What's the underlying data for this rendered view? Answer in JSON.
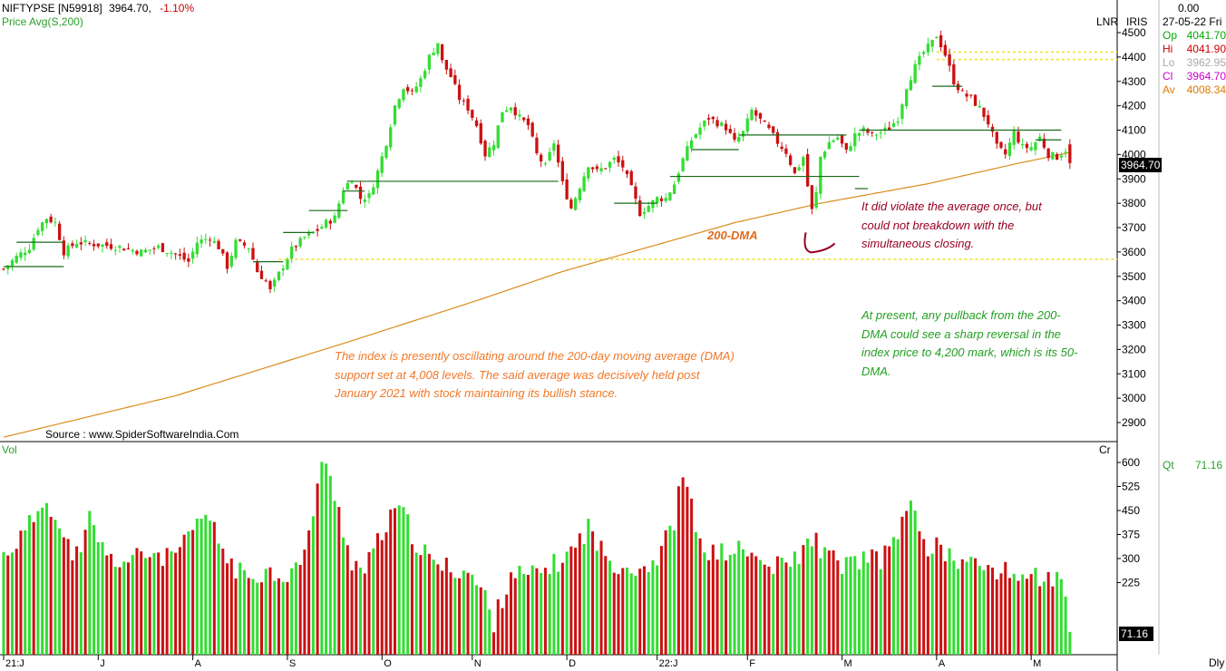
{
  "header": {
    "symbol": "NIFTYPSE [N59918]",
    "price": "3964.70,",
    "change": "-1.10%",
    "indicator_line": "Price  Avg(S,200)"
  },
  "right_panel": {
    "scale_mode": "LNR",
    "source_code": "IRIS",
    "top_value": "0.00",
    "date": "27-05-22 Fri",
    "ohlc": [
      {
        "key": "Op",
        "value": "4041.70",
        "color": "#00aa00"
      },
      {
        "key": "Hi",
        "value": "4041.90",
        "color": "#cc0000"
      },
      {
        "key": "Lo",
        "value": "3962.95",
        "color": "#aaaaaa"
      },
      {
        "key": "Cl",
        "value": "3964.70",
        "color": "#cc00cc"
      },
      {
        "key": "Av",
        "value": "4008.34",
        "color": "#e07800"
      }
    ],
    "last_price_tag": "3964.70",
    "qty_label": "Qt",
    "qty_value": "71.16",
    "volume_units": "Cr",
    "last_volume_tag": "71.16",
    "period": "Dly"
  },
  "volume_panel": {
    "label": "Vol"
  },
  "source": "Source : www.SpiderSoftwareIndia.Com",
  "annotations": {
    "dma_label": "200-DMA",
    "violation_note": " It did violate the average once, but could not breakdown with the simultaneous closing.",
    "pullback_note": "At present, any pullback from the 200-DMA could see a sharp reversal in the index price to 4,200 mark, which is its 50-DMA.",
    "oscillation_note": "The index is presently oscillating around the 200-day moving average (DMA) support set at 4,008 levels. The said average was decisively held post January 2021 with stock maintaining its bullish stance."
  },
  "colors": {
    "up": "#33dd33",
    "down": "#cc1111",
    "dma": "#d98c1a",
    "support_dotted": "#f0e020",
    "note_orange": "#f07828",
    "note_green": "#22a022",
    "note_maroon": "#990022"
  },
  "chart_data": {
    "type": "candlestick",
    "series_names": [
      "Price",
      "Avg(S,200)"
    ],
    "price_axis": {
      "min": 2800,
      "max": 4550,
      "ticks": [
        2900,
        3000,
        3100,
        3200,
        3300,
        3400,
        3500,
        3600,
        3700,
        3800,
        3900,
        4000,
        4100,
        4200,
        4300,
        4400,
        4500
      ]
    },
    "volume_axis": {
      "min": 0,
      "max": 620,
      "units": "Cr",
      "ticks": [
        225,
        300,
        375,
        450,
        525,
        600
      ]
    },
    "x_labels": [
      "21:J",
      "J",
      "A",
      "S",
      "O",
      "N",
      "D",
      "22:J",
      "F",
      "M",
      "A",
      "M"
    ],
    "x_label_start_period": [
      0,
      22,
      44,
      66,
      88,
      109,
      131,
      152,
      173,
      195,
      217,
      239
    ],
    "periods_count": 259,
    "last": {
      "open": 4041.7,
      "high": 4041.9,
      "low": 3962.95,
      "close": 3964.7,
      "avg200": 4008.34,
      "volume": 71.16
    },
    "price_path": [
      [
        0,
        3530
      ],
      [
        3,
        3580
      ],
      [
        6,
        3620
      ],
      [
        8,
        3700
      ],
      [
        10,
        3740
      ],
      [
        12,
        3720
      ],
      [
        14,
        3600
      ],
      [
        17,
        3640
      ],
      [
        22,
        3630
      ],
      [
        27,
        3620
      ],
      [
        32,
        3600
      ],
      [
        36,
        3620
      ],
      [
        40,
        3590
      ],
      [
        43,
        3560
      ],
      [
        45,
        3640
      ],
      [
        48,
        3660
      ],
      [
        50,
        3620
      ],
      [
        52,
        3540
      ],
      [
        54,
        3640
      ],
      [
        57,
        3620
      ],
      [
        59,
        3520
      ],
      [
        61,
        3480
      ],
      [
        62,
        3440
      ],
      [
        64,
        3510
      ],
      [
        67,
        3610
      ],
      [
        70,
        3660
      ],
      [
        73,
        3690
      ],
      [
        75,
        3720
      ],
      [
        77,
        3740
      ],
      [
        79,
        3860
      ],
      [
        81,
        3900
      ],
      [
        83,
        3820
      ],
      [
        85,
        3830
      ],
      [
        87,
        3930
      ],
      [
        89,
        4050
      ],
      [
        91,
        4200
      ],
      [
        93,
        4280
      ],
      [
        95,
        4250
      ],
      [
        97,
        4310
      ],
      [
        99,
        4400
      ],
      [
        101,
        4460
      ],
      [
        102,
        4380
      ],
      [
        104,
        4320
      ],
      [
        106,
        4230
      ],
      [
        108,
        4190
      ],
      [
        110,
        4120
      ],
      [
        112,
        4000
      ],
      [
        114,
        4050
      ],
      [
        116,
        4180
      ],
      [
        118,
        4200
      ],
      [
        120,
        4150
      ],
      [
        122,
        4120
      ],
      [
        124,
        4000
      ],
      [
        126,
        3950
      ],
      [
        128,
        4050
      ],
      [
        130,
        3880
      ],
      [
        132,
        3780
      ],
      [
        134,
        3870
      ],
      [
        136,
        3960
      ],
      [
        138,
        3930
      ],
      [
        140,
        3950
      ],
      [
        142,
        3980
      ],
      [
        144,
        3950
      ],
      [
        146,
        3860
      ],
      [
        148,
        3760
      ],
      [
        150,
        3790
      ],
      [
        152,
        3820
      ],
      [
        154,
        3820
      ],
      [
        156,
        3880
      ],
      [
        158,
        3980
      ],
      [
        160,
        4060
      ],
      [
        162,
        4110
      ],
      [
        164,
        4150
      ],
      [
        166,
        4130
      ],
      [
        168,
        4110
      ],
      [
        170,
        4050
      ],
      [
        172,
        4090
      ],
      [
        174,
        4180
      ],
      [
        176,
        4140
      ],
      [
        178,
        4100
      ],
      [
        180,
        4050
      ],
      [
        182,
        4010
      ],
      [
        184,
        3920
      ],
      [
        186,
        3990
      ],
      [
        187,
        3870
      ],
      [
        188,
        3770
      ],
      [
        189,
        3840
      ],
      [
        190,
        3990
      ],
      [
        192,
        4050
      ],
      [
        194,
        4070
      ],
      [
        196,
        4010
      ],
      [
        198,
        4080
      ],
      [
        200,
        4100
      ],
      [
        202,
        4080
      ],
      [
        204,
        4090
      ],
      [
        206,
        4110
      ],
      [
        208,
        4150
      ],
      [
        210,
        4280
      ],
      [
        212,
        4360
      ],
      [
        214,
        4420
      ],
      [
        216,
        4460
      ],
      [
        217,
        4490
      ],
      [
        219,
        4410
      ],
      [
        221,
        4300
      ],
      [
        223,
        4250
      ],
      [
        225,
        4230
      ],
      [
        227,
        4190
      ],
      [
        229,
        4130
      ],
      [
        231,
        4030
      ],
      [
        233,
        4000
      ],
      [
        235,
        4090
      ],
      [
        237,
        4030
      ],
      [
        239,
        4030
      ],
      [
        241,
        4070
      ],
      [
        243,
        4000
      ],
      [
        245,
        3990
      ],
      [
        247,
        4020
      ],
      [
        248,
        3965
      ]
    ],
    "dma_path": [
      [
        0,
        2840
      ],
      [
        40,
        3010
      ],
      [
        80,
        3230
      ],
      [
        110,
        3400
      ],
      [
        130,
        3520
      ],
      [
        150,
        3620
      ],
      [
        170,
        3720
      ],
      [
        190,
        3800
      ],
      [
        215,
        3880
      ],
      [
        235,
        3960
      ],
      [
        248,
        4008
      ]
    ],
    "volume_path": [
      [
        0,
        310
      ],
      [
        5,
        380
      ],
      [
        10,
        500
      ],
      [
        14,
        350
      ],
      [
        18,
        300
      ],
      [
        20,
        430
      ],
      [
        24,
        300
      ],
      [
        28,
        290
      ],
      [
        35,
        320
      ],
      [
        38,
        300
      ],
      [
        42,
        340
      ],
      [
        47,
        440
      ],
      [
        52,
        300
      ],
      [
        56,
        240
      ],
      [
        60,
        260
      ],
      [
        66,
        250
      ],
      [
        70,
        300
      ],
      [
        74,
        610
      ],
      [
        77,
        500
      ],
      [
        81,
        290
      ],
      [
        84,
        260
      ],
      [
        88,
        380
      ],
      [
        92,
        460
      ],
      [
        96,
        350
      ],
      [
        100,
        280
      ],
      [
        104,
        270
      ],
      [
        108,
        260
      ],
      [
        112,
        180
      ],
      [
        114,
        100
      ],
      [
        118,
        260
      ],
      [
        122,
        240
      ],
      [
        128,
        280
      ],
      [
        132,
        320
      ],
      [
        136,
        400
      ],
      [
        140,
        300
      ],
      [
        144,
        280
      ],
      [
        148,
        270
      ],
      [
        152,
        300
      ],
      [
        156,
        420
      ],
      [
        158,
        570
      ],
      [
        162,
        340
      ],
      [
        166,
        310
      ],
      [
        170,
        330
      ],
      [
        174,
        310
      ],
      [
        178,
        270
      ],
      [
        182,
        280
      ],
      [
        186,
        320
      ],
      [
        188,
        370
      ],
      [
        192,
        300
      ],
      [
        196,
        280
      ],
      [
        200,
        300
      ],
      [
        204,
        290
      ],
      [
        208,
        390
      ],
      [
        212,
        470
      ],
      [
        214,
        340
      ],
      [
        218,
        330
      ],
      [
        222,
        290
      ],
      [
        226,
        280
      ],
      [
        230,
        270
      ],
      [
        234,
        250
      ],
      [
        238,
        250
      ],
      [
        242,
        240
      ],
      [
        246,
        230
      ],
      [
        248,
        71
      ]
    ],
    "support_levels": [
      4420,
      4390,
      3570
    ],
    "horizontal_ranges": [
      {
        "y": 3540,
        "x0": 0,
        "x1": 14
      },
      {
        "y": 3640,
        "x0": 3,
        "x1": 14
      },
      {
        "y": 3560,
        "x0": 58,
        "x1": 65
      },
      {
        "y": 3680,
        "x0": 65,
        "x1": 72
      },
      {
        "y": 3770,
        "x0": 71,
        "x1": 80
      },
      {
        "y": 3850,
        "x0": 79,
        "x1": 84
      },
      {
        "y": 3890,
        "x0": 80,
        "x1": 129
      },
      {
        "y": 3800,
        "x0": 142,
        "x1": 152
      },
      {
        "y": 3910,
        "x0": 155,
        "x1": 199
      },
      {
        "y": 4020,
        "x0": 160,
        "x1": 171
      },
      {
        "y": 4080,
        "x0": 171,
        "x1": 196
      },
      {
        "y": 3860,
        "x0": 198,
        "x1": 201
      },
      {
        "y": 4100,
        "x0": 199,
        "x1": 246
      },
      {
        "y": 4280,
        "x0": 216,
        "x1": 223
      },
      {
        "y": 4060,
        "x0": 240,
        "x1": 246
      }
    ]
  }
}
